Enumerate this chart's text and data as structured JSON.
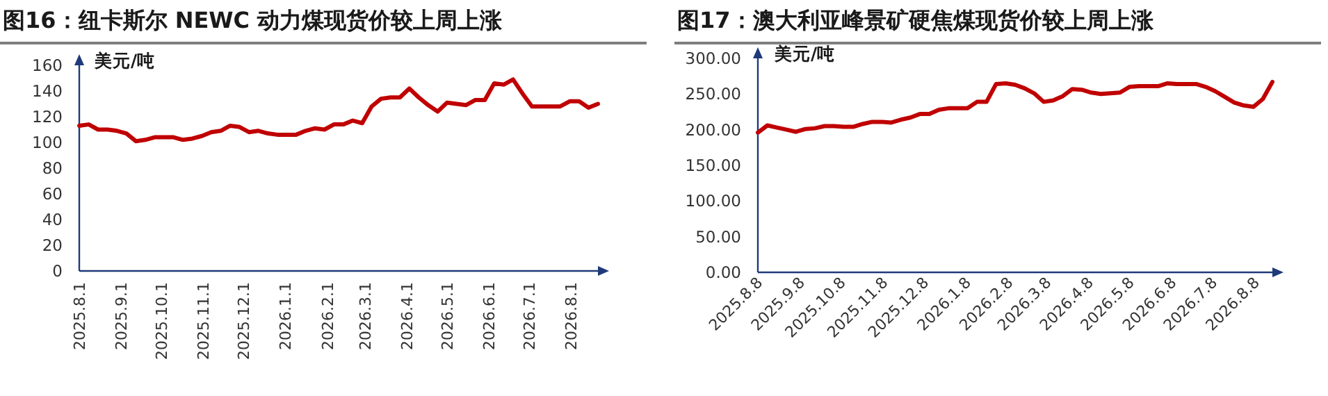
{
  "chart_data": [
    {
      "type": "line",
      "title": "图16：纽卡斯尔 NEWC 动力煤现货价较上周上涨",
      "ylabel": "美元/吨",
      "x": [
        "2025-08-01",
        "2025-08-08",
        "2025-08-15",
        "2025-08-22",
        "2025-08-29",
        "2025-09-05",
        "2025-09-12",
        "2025-09-19",
        "2025-09-26",
        "2025-10-03",
        "2025-10-10",
        "2025-10-17",
        "2025-10-24",
        "2025-10-31",
        "2025-11-07",
        "2025-11-14",
        "2025-11-21",
        "2025-11-28",
        "2025-12-05",
        "2025-12-12",
        "2025-12-19",
        "2025-12-26",
        "2026-01-02",
        "2026-01-09",
        "2026-01-16",
        "2026-01-23",
        "2026-01-30",
        "2026-02-06",
        "2026-02-13",
        "2026-02-20",
        "2026-02-27",
        "2026-03-06",
        "2026-03-13",
        "2026-03-20",
        "2026-03-27",
        "2026-04-03",
        "2026-04-10",
        "2026-04-17",
        "2026-04-24",
        "2026-05-01",
        "2026-05-08",
        "2026-05-15",
        "2026-05-22",
        "2026-05-29",
        "2026-06-05",
        "2026-06-12",
        "2026-06-19",
        "2026-06-26",
        "2026-07-03",
        "2026-07-10",
        "2026-07-17",
        "2026-07-24",
        "2026-07-31",
        "2026-08-07",
        "2026-08-14",
        "2026-08-21"
      ],
      "series": [
        {
          "color": "#c00000",
          "values": [
            113,
            114,
            110,
            110,
            109,
            107,
            101,
            102,
            104,
            104,
            104,
            102,
            103,
            105,
            108,
            109,
            113,
            112,
            108,
            109,
            107,
            106,
            106,
            106,
            109,
            111,
            110,
            114,
            114,
            117,
            115,
            128,
            134,
            135,
            135,
            142,
            135,
            129,
            124,
            131,
            130,
            129,
            133,
            133,
            146,
            145,
            149,
            138,
            128,
            128,
            128,
            128,
            132,
            132,
            127,
            130
          ]
        }
      ],
      "xlim": [
        "2025-08-01",
        "2026-08-21"
      ],
      "ylim": [
        0,
        160
      ],
      "yticks": [
        0,
        20,
        40,
        60,
        80,
        100,
        120,
        140,
        160
      ],
      "xticks": [
        {
          "value": "2025-08-01",
          "label": "2025.8.1"
        },
        {
          "value": "2025-09-01",
          "label": "2025.9.1"
        },
        {
          "value": "2025-10-01",
          "label": "2025.10.1"
        },
        {
          "value": "2025-11-01",
          "label": "2025.11.1"
        },
        {
          "value": "2025-12-01",
          "label": "2025.12.1"
        },
        {
          "value": "2026-01-01",
          "label": "2026.1.1"
        },
        {
          "value": "2026-02-01",
          "label": "2026.2.1"
        },
        {
          "value": "2026-03-01",
          "label": "2026.3.1"
        },
        {
          "value": "2026-04-01",
          "label": "2026.4.1"
        },
        {
          "value": "2026-05-01",
          "label": "2026.5.1"
        },
        {
          "value": "2026-06-01",
          "label": "2026.6.1"
        },
        {
          "value": "2026-07-01",
          "label": "2026.7.1"
        },
        {
          "value": "2026-08-01",
          "label": "2026.8.1"
        }
      ]
    },
    {
      "type": "line",
      "title": "图17：澳大利亚峰景矿硬焦煤现货价较上周上涨",
      "ylabel": "美元/吨",
      "x": [
        "2025-08-08",
        "2025-08-15",
        "2025-08-22",
        "2025-08-29",
        "2025-09-05",
        "2025-09-12",
        "2025-09-19",
        "2025-09-26",
        "2025-10-03",
        "2025-10-10",
        "2025-10-17",
        "2025-10-24",
        "2025-10-31",
        "2025-11-07",
        "2025-11-14",
        "2025-11-21",
        "2025-11-28",
        "2025-12-05",
        "2025-12-12",
        "2025-12-19",
        "2025-12-26",
        "2026-01-02",
        "2026-01-09",
        "2026-01-16",
        "2026-01-23",
        "2026-01-30",
        "2026-02-06",
        "2026-02-13",
        "2026-02-20",
        "2026-02-27",
        "2026-03-06",
        "2026-03-13",
        "2026-03-20",
        "2026-03-27",
        "2026-04-03",
        "2026-04-10",
        "2026-04-17",
        "2026-04-24",
        "2026-05-01",
        "2026-05-08",
        "2026-05-15",
        "2026-05-22",
        "2026-05-29",
        "2026-06-05",
        "2026-06-12",
        "2026-06-19",
        "2026-06-26",
        "2026-07-03",
        "2026-07-10",
        "2026-07-17",
        "2026-07-24",
        "2026-07-31",
        "2026-08-07",
        "2026-08-14",
        "2026-08-21"
      ],
      "series": [
        {
          "color": "#c00000",
          "values": [
            196,
            206,
            203,
            200,
            197,
            201,
            202,
            205,
            205,
            204,
            204,
            208,
            211,
            211,
            210,
            214,
            217,
            222,
            222,
            228,
            230,
            230,
            230,
            239,
            239,
            264,
            265,
            263,
            258,
            251,
            239,
            241,
            247,
            257,
            256,
            252,
            250,
            251,
            252,
            260,
            261,
            261,
            261,
            265,
            264,
            264,
            264,
            260,
            254,
            246,
            238,
            234,
            232,
            243,
            267
          ]
        }
      ],
      "xlim": [
        "2025-08-08",
        "2026-08-21"
      ],
      "ylim": [
        0,
        300
      ],
      "yticks": [
        {
          "value": 0,
          "label": "0.00"
        },
        {
          "value": 50,
          "label": "50.00"
        },
        {
          "value": 100,
          "label": "100.00"
        },
        {
          "value": 150,
          "label": "150.00"
        },
        {
          "value": 200,
          "label": "200.00"
        },
        {
          "value": 250,
          "label": "250.00"
        },
        {
          "value": 300,
          "label": "300.00"
        }
      ],
      "xticks": [
        {
          "value": "2025-08-08",
          "label": "2025.8.8"
        },
        {
          "value": "2025-09-08",
          "label": "2025.9.8"
        },
        {
          "value": "2025-10-08",
          "label": "2025.10.8"
        },
        {
          "value": "2025-11-08",
          "label": "2025.11.8"
        },
        {
          "value": "2025-12-08",
          "label": "2025.12.8"
        },
        {
          "value": "2026-01-08",
          "label": "2026.1.8"
        },
        {
          "value": "2026-02-08",
          "label": "2026.2.8"
        },
        {
          "value": "2026-03-08",
          "label": "2026.3.8"
        },
        {
          "value": "2026-04-08",
          "label": "2026.4.8"
        },
        {
          "value": "2026-05-08",
          "label": "2026.5.8"
        },
        {
          "value": "2026-06-08",
          "label": "2026.6.8"
        },
        {
          "value": "2026-07-08",
          "label": "2026.7.8"
        },
        {
          "value": "2026-08-08",
          "label": "2026.8.8"
        }
      ]
    }
  ]
}
